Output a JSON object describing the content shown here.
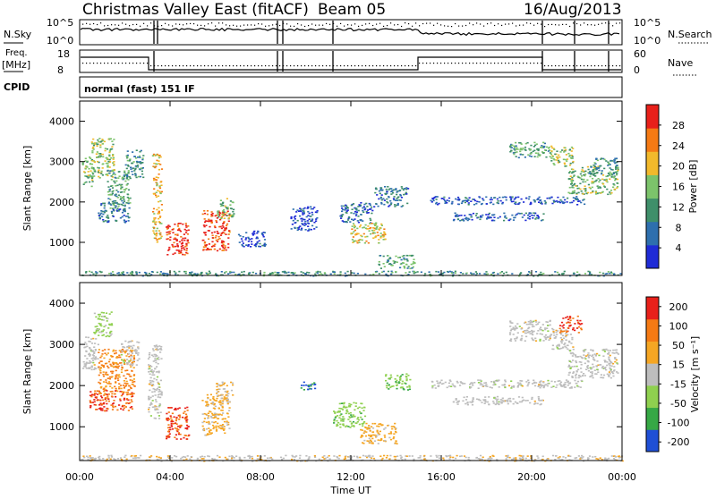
{
  "header": {
    "station": "Christmas Valley East (fitACF)",
    "beam": "Beam 05",
    "date": "16/Aug/2013"
  },
  "nsky_panel": {
    "left_label": "N.Sky",
    "right_label": "N.Search",
    "left_ticks": [
      "10^5",
      "10^0"
    ],
    "right_ticks": [
      "10^5",
      "10^0"
    ]
  },
  "freq_panel": {
    "left_label_1": "Freq.",
    "left_label_2": "[MHz]",
    "right_label": "Nave",
    "left_ticks": [
      "18",
      "8"
    ],
    "right_ticks": [
      "60",
      "0"
    ]
  },
  "cpid": {
    "label": "CPID",
    "mode": "normal (fast) 151 IF"
  },
  "colors": {
    "power_scale": [
      "#1f2bd6",
      "#2e6fae",
      "#3f8f6a",
      "#7cc36b",
      "#f2b92b",
      "#f57a14",
      "#e8201a"
    ],
    "velocity_scale": [
      "#e8201a",
      "#f57a14",
      "#f5a623",
      "#bdbdbd",
      "#8fd04f",
      "#36a845",
      "#1f4fd6"
    ]
  },
  "chart_data": [
    {
      "type": "heatmap",
      "name": "power",
      "xlabel": "Time UT",
      "ylabel": "Slant Range [km]",
      "x_ticks": [
        "00:00",
        "04:00",
        "08:00",
        "12:00",
        "16:00",
        "20:00",
        "00:00"
      ],
      "y_ticks": [
        1000,
        2000,
        3000,
        4000
      ],
      "x_range_hours": [
        0,
        24
      ],
      "y_range_km": [
        180,
        4500
      ],
      "colorbar": {
        "label": "Power [dB]",
        "ticks": [
          4,
          8,
          12,
          16,
          20,
          24,
          28
        ],
        "range": [
          0,
          30
        ]
      },
      "regions": [
        {
          "t0": 0.1,
          "t1": 0.6,
          "r0": 2400,
          "r1": 3200,
          "v": 14
        },
        {
          "t0": 0.5,
          "t1": 1.5,
          "r0": 2600,
          "r1": 3600,
          "v": 16
        },
        {
          "t0": 1.2,
          "t1": 2.2,
          "r0": 1900,
          "r1": 2800,
          "v": 12
        },
        {
          "t0": 2.0,
          "t1": 2.8,
          "r0": 2600,
          "r1": 3300,
          "v": 10
        },
        {
          "t0": 0.8,
          "t1": 2.2,
          "r0": 1500,
          "r1": 2000,
          "v": 8
        },
        {
          "t0": 3.2,
          "t1": 3.6,
          "r0": 1000,
          "r1": 3200,
          "v": 20
        },
        {
          "t0": 3.8,
          "t1": 4.8,
          "r0": 700,
          "r1": 1500,
          "v": 28
        },
        {
          "t0": 5.4,
          "t1": 6.6,
          "r0": 800,
          "r1": 1800,
          "v": 26
        },
        {
          "t0": 6.0,
          "t1": 6.8,
          "r0": 1600,
          "r1": 2100,
          "v": 14
        },
        {
          "t0": 7.0,
          "t1": 8.2,
          "r0": 900,
          "r1": 1300,
          "v": 4
        },
        {
          "t0": 9.3,
          "t1": 10.5,
          "r0": 1300,
          "r1": 1900,
          "v": 4
        },
        {
          "t0": 11.5,
          "t1": 13.0,
          "r0": 1500,
          "r1": 2000,
          "v": 6
        },
        {
          "t0": 11.9,
          "t1": 13.5,
          "r0": 1000,
          "r1": 1500,
          "v": 18
        },
        {
          "t0": 13.0,
          "t1": 14.5,
          "r0": 1900,
          "r1": 2400,
          "v": 8
        },
        {
          "t0": 13.2,
          "t1": 14.8,
          "r0": 350,
          "r1": 700,
          "v": 12
        },
        {
          "t0": 15.5,
          "t1": 22.3,
          "r0": 1950,
          "r1": 2150,
          "v": 5
        },
        {
          "t0": 16.5,
          "t1": 20.5,
          "r0": 1550,
          "r1": 1750,
          "v": 5
        },
        {
          "t0": 19.0,
          "t1": 20.8,
          "r0": 3100,
          "r1": 3500,
          "v": 12
        },
        {
          "t0": 20.8,
          "t1": 21.8,
          "r0": 2900,
          "r1": 3400,
          "v": 16
        },
        {
          "t0": 21.6,
          "t1": 23.8,
          "r0": 2200,
          "r1": 2900,
          "v": 14
        },
        {
          "t0": 22.5,
          "t1": 23.8,
          "r0": 2700,
          "r1": 3100,
          "v": 10
        },
        {
          "t0": 0.0,
          "t1": 24.0,
          "r0": 180,
          "r1": 300,
          "v": 10
        }
      ]
    },
    {
      "type": "heatmap",
      "name": "velocity",
      "xlabel": "Time UT",
      "ylabel": "Slant Range [km]",
      "x_ticks": [
        "00:00",
        "04:00",
        "08:00",
        "12:00",
        "16:00",
        "20:00",
        "00:00"
      ],
      "y_ticks": [
        1000,
        2000,
        3000,
        4000
      ],
      "x_range_hours": [
        0,
        24
      ],
      "y_range_km": [
        180,
        4500
      ],
      "colorbar": {
        "label": "Velocity [m s⁻¹]",
        "ticks": [
          200,
          100,
          50,
          15,
          -15,
          -50,
          -100,
          -200
        ],
        "range": [
          -250,
          250
        ]
      },
      "regions": [
        {
          "t0": 0.1,
          "t1": 0.8,
          "r0": 2400,
          "r1": 3200,
          "v": 0
        },
        {
          "t0": 0.6,
          "t1": 1.4,
          "r0": 3200,
          "r1": 3800,
          "v": -60
        },
        {
          "t0": 0.8,
          "t1": 2.4,
          "r0": 1800,
          "r1": 2900,
          "v": 120
        },
        {
          "t0": 1.8,
          "t1": 2.6,
          "r0": 2500,
          "r1": 3100,
          "v": 0
        },
        {
          "t0": 0.4,
          "t1": 2.3,
          "r0": 1400,
          "r1": 1900,
          "v": 180
        },
        {
          "t0": 3.0,
          "t1": 3.6,
          "r0": 1200,
          "r1": 3000,
          "v": 0
        },
        {
          "t0": 3.8,
          "t1": 4.8,
          "r0": 700,
          "r1": 1500,
          "v": 180
        },
        {
          "t0": 5.4,
          "t1": 6.6,
          "r0": 800,
          "r1": 1800,
          "v": 60
        },
        {
          "t0": 6.0,
          "t1": 6.8,
          "r0": 1600,
          "r1": 2100,
          "v": 40
        },
        {
          "t0": 9.6,
          "t1": 10.4,
          "r0": 1900,
          "r1": 2100,
          "v": -200
        },
        {
          "t0": 11.2,
          "t1": 12.6,
          "r0": 1000,
          "r1": 1600,
          "v": -80
        },
        {
          "t0": 12.4,
          "t1": 14.0,
          "r0": 600,
          "r1": 1100,
          "v": 60
        },
        {
          "t0": 13.5,
          "t1": 14.6,
          "r0": 1900,
          "r1": 2300,
          "v": -90
        },
        {
          "t0": 15.5,
          "t1": 22.3,
          "r0": 1950,
          "r1": 2150,
          "v": 0
        },
        {
          "t0": 16.5,
          "t1": 20.5,
          "r0": 1550,
          "r1": 1750,
          "v": 0
        },
        {
          "t0": 19.0,
          "t1": 20.8,
          "r0": 3100,
          "r1": 3600,
          "v": 0
        },
        {
          "t0": 20.8,
          "t1": 21.8,
          "r0": 2900,
          "r1": 3400,
          "v": 0
        },
        {
          "t0": 21.6,
          "t1": 23.8,
          "r0": 2200,
          "r1": 2900,
          "v": 0
        },
        {
          "t0": 21.2,
          "t1": 22.2,
          "r0": 3300,
          "r1": 3700,
          "v": 180
        },
        {
          "t0": 0.0,
          "t1": 24.0,
          "r0": 180,
          "r1": 320,
          "v": 20
        }
      ]
    }
  ]
}
